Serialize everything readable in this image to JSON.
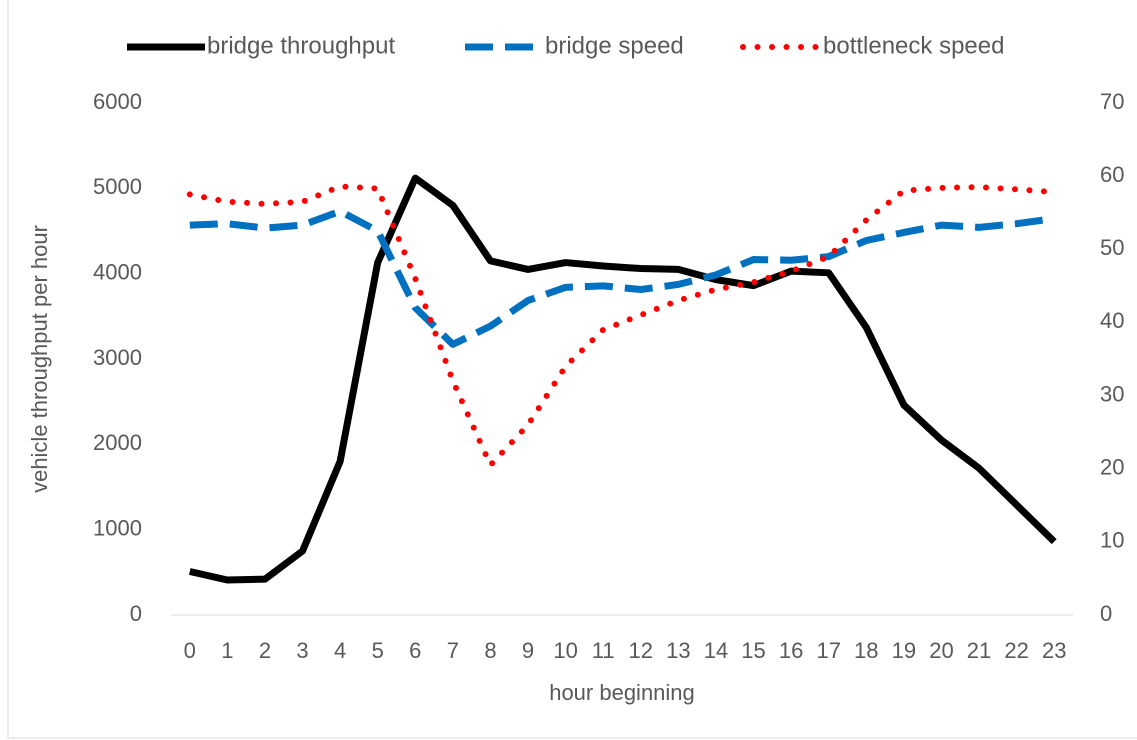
{
  "chart_data": {
    "type": "line",
    "categories": [
      "0",
      "1",
      "2",
      "3",
      "4",
      "5",
      "6",
      "7",
      "8",
      "9",
      "10",
      "11",
      "12",
      "13",
      "14",
      "15",
      "16",
      "17",
      "18",
      "19",
      "20",
      "21",
      "22",
      "23"
    ],
    "series": [
      {
        "name": "bridge throughput",
        "color": "#000000",
        "style": "solid",
        "values": [
          510,
          410,
          420,
          750,
          1800,
          4130,
          5120,
          4800,
          4150,
          4050,
          4130,
          4090,
          4060,
          4050,
          3930,
          3860,
          4030,
          4010,
          3370,
          2460,
          2050,
          1720,
          1290,
          860
        ]
      },
      {
        "name": "bridge speed",
        "color": "#0070c0",
        "style": "dashed",
        "axis": "y2",
        "values": [
          53.3,
          53.5,
          52.9,
          53.3,
          55.2,
          52.5,
          42,
          37,
          39.5,
          43,
          44.8,
          45,
          44.5,
          45.2,
          46.5,
          48.6,
          48.5,
          49,
          51.2,
          52.3,
          53.3,
          53,
          53.5,
          54.2
        ]
      },
      {
        "name": "bottleneck speed",
        "color": "#ff0000",
        "style": "dotted",
        "axis": "y2",
        "values": [
          57.5,
          56.5,
          56.2,
          56.5,
          58.6,
          58.3,
          46,
          32,
          20.5,
          26,
          34,
          39,
          41,
          43,
          44.5,
          45.5,
          47,
          49,
          54,
          58,
          58.4,
          58.5,
          58.2,
          57.8
        ]
      }
    ],
    "ylim": [
      0,
      6000
    ],
    "yticks": [
      0,
      1000,
      2000,
      3000,
      4000,
      5000,
      6000
    ],
    "y2lim": [
      0,
      70
    ],
    "y2ticks": [
      0,
      10,
      20,
      30,
      40,
      50,
      60,
      70
    ],
    "xlabel": "hour beginning",
    "ylabel": "vehicle throughput per hour",
    "legend": "top"
  }
}
